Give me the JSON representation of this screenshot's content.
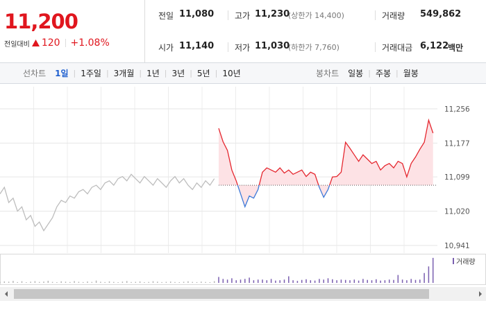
{
  "header": {
    "price": "11,200",
    "change_label": "전일대비",
    "change": "120",
    "change_pct": "+1.08%"
  },
  "summary": {
    "rows": [
      [
        {
          "label": "전일",
          "value": "11,080"
        },
        {
          "label": "고가",
          "value": "11,230",
          "note": "(상한가 14,400)"
        },
        {
          "label": "거래량",
          "value": "549,862"
        }
      ],
      [
        {
          "label": "시가",
          "value": "11,140"
        },
        {
          "label": "저가",
          "value": "11,030",
          "note": "(하한가 7,760)"
        },
        {
          "label": "거래대금",
          "value": "6,122",
          "unit": "백만"
        }
      ]
    ]
  },
  "tabs": {
    "line": {
      "label": "선차트",
      "items": [
        "1일",
        "1주일",
        "3개월",
        "1년",
        "3년",
        "5년",
        "10년"
      ],
      "active": 0
    },
    "candle": {
      "label": "봉차트",
      "items": [
        "일봉",
        "주봉",
        "월봉"
      ]
    }
  },
  "chart_data": {
    "type": "line",
    "ylim": [
      10941,
      11256
    ],
    "yticks": [
      {
        "value": 11256,
        "label": "11,256"
      },
      {
        "value": 11177,
        "label": "11,177"
      },
      {
        "value": 11099,
        "label": "11,099"
      },
      {
        "value": 11020,
        "label": "11,020"
      },
      {
        "value": 10941,
        "label": "10,941"
      }
    ],
    "grid": true,
    "baseline": 11080,
    "volume_name": "거래량",
    "vlim": [
      0,
      40000
    ],
    "series": [
      {
        "color": "#bdbdbd",
        "volume_color": "#b5b5b5",
        "values": [
          11060,
          11075,
          11040,
          11050,
          11020,
          11030,
          11000,
          11010,
          10985,
          10995,
          10975,
          10990,
          11005,
          11030,
          11045,
          11040,
          11055,
          11050,
          11065,
          11070,
          11060,
          11075,
          11080,
          11070,
          11085,
          11090,
          11080,
          11095,
          11100,
          11090,
          11105,
          11095,
          11085,
          11100,
          11090,
          11080,
          11095,
          11085,
          11075,
          11090,
          11100,
          11085,
          11095,
          11080,
          11070,
          11085,
          11075,
          11090,
          11080,
          11095
        ],
        "volume": [
          1500,
          2200,
          1800,
          3000,
          1200,
          2500,
          1000,
          1800,
          2600,
          1400,
          2000,
          3200,
          1500,
          1100,
          2400,
          1800,
          1300,
          2700,
          1600,
          1200,
          2100,
          1400,
          3500,
          1700,
          1200,
          2300,
          1500,
          1000,
          1900,
          2800,
          1300,
          1600,
          2200,
          1100,
          1400,
          2500,
          1800,
          1200,
          1600,
          2000,
          1300,
          1100,
          1700,
          2400,
          1500,
          1200,
          1900,
          1400,
          1100,
          2600
        ]
      },
      {
        "color": "#e5262e",
        "down_color": "#3b78d8",
        "area_color": "#fde2e5",
        "volume_color": "#7a5fb0",
        "values": [
          11211,
          11180,
          11160,
          11115,
          11090,
          11060,
          11030,
          11055,
          11050,
          11070,
          11110,
          11120,
          11115,
          11110,
          11120,
          11108,
          11115,
          11105,
          11110,
          11115,
          11100,
          11110,
          11105,
          11075,
          11052,
          11070,
          11099,
          11100,
          11110,
          11179,
          11165,
          11150,
          11135,
          11150,
          11140,
          11130,
          11135,
          11115,
          11125,
          11130,
          11120,
          11135,
          11130,
          11099,
          11130,
          11145,
          11163,
          11179,
          11230,
          11200
        ],
        "volume": [
          9000,
          6000,
          5000,
          7000,
          4000,
          5000,
          6000,
          8000,
          4000,
          5000,
          5000,
          4000,
          6000,
          3500,
          4000,
          5000,
          10000,
          4000,
          3000,
          4500,
          5500,
          4000,
          3500,
          6000,
          5000,
          7000,
          5500,
          4000,
          5000,
          4500,
          4000,
          5000,
          3500,
          6000,
          4500,
          4000,
          5500,
          3500,
          4000,
          5000,
          4500,
          12000,
          5000,
          4000,
          6000,
          4500,
          5000,
          15000,
          25000,
          38000
        ]
      }
    ]
  }
}
